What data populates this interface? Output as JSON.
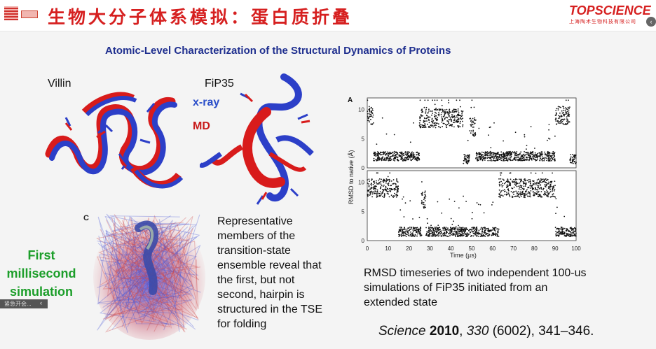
{
  "header": {
    "title": "生物大分子体系模拟：蛋白质折叠",
    "brand": "TOPSCIENCE",
    "brand_sub": "上海陶术生物科技有限公司"
  },
  "slide": {
    "subtitle": "Atomic-Level Characterization of the Structural Dynamics of Proteins",
    "label_villin": "Villin",
    "label_fip35": "FiP35",
    "legend_xray": "x-ray",
    "legend_md": "MD",
    "panel_c": "C",
    "first_line1": "First",
    "first_line2": "millisecond",
    "first_line3": "simulation",
    "representative": "Representative members of the transition-state ensemble reveal that the first, but not second, hairpin is structured in the TSE for folding",
    "rmsd_caption": "RMSD timeseries of two independent 100-us simulations of FiP35 initiated from an extended state",
    "citation": {
      "journal": "Science",
      "year": "2010",
      "volume": "330",
      "issue_pages": "(6002), 341–346."
    },
    "taskbar_text": "紧急开会..."
  },
  "colors": {
    "title_red": "#d62020",
    "subtitle_blue": "#1f2f8f",
    "xray_blue": "#2a4ec9",
    "md_red": "#c81b1b",
    "first_green": "#1c9e2a"
  },
  "chart_data": {
    "type": "scatter",
    "panel_label": "A",
    "xlabel": "Time (µs)",
    "ylabel": "RMSD to native (Å)",
    "xlim": [
      0,
      100
    ],
    "ylim": [
      0,
      12
    ],
    "x_ticks": [
      "0",
      "10",
      "20",
      "30",
      "40",
      "50",
      "60",
      "70",
      "80",
      "90",
      "100"
    ],
    "y_ticks": [
      "0",
      "5",
      "10"
    ],
    "series": [
      {
        "segments": [
          {
            "x": [
              0,
              3
            ],
            "level": 9
          },
          {
            "x": [
              3,
              25
            ],
            "level": 2
          },
          {
            "x": [
              25,
              46
            ],
            "level": 8.5
          },
          {
            "x": [
              46,
              49
            ],
            "level": 1.5
          },
          {
            "x": [
              49,
              52
            ],
            "level": 7
          },
          {
            "x": [
              52,
              90
            ],
            "level": 2
          },
          {
            "x": [
              90,
              97
            ],
            "level": 9
          },
          {
            "x": [
              97,
              100
            ],
            "level": 1.5
          }
        ]
      },
      {
        "segments": [
          {
            "x": [
              0,
              15
            ],
            "level": 9
          },
          {
            "x": [
              15,
              26
            ],
            "level": 1.5
          },
          {
            "x": [
              26,
              28
            ],
            "level": 7
          },
          {
            "x": [
              28,
              63
            ],
            "level": 1.5
          },
          {
            "x": [
              63,
              90
            ],
            "level": 9
          },
          {
            "x": [
              90,
              100
            ],
            "level": 1.5
          }
        ]
      }
    ]
  }
}
